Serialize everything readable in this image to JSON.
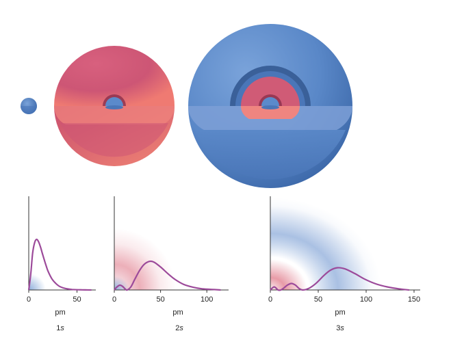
{
  "colors": {
    "blue": "#5b8acb",
    "pink": "#d05b76",
    "curve": "#9c4a9a",
    "axis": "#333333"
  },
  "unit_label": "pm",
  "chart_data": [
    {
      "type": "line",
      "orbital": {
        "number": "1",
        "letter": "s"
      },
      "xlabel": "pm",
      "xlim": [
        0,
        70
      ],
      "x_ticks": [
        0,
        50
      ],
      "nodes": 0,
      "curve": [
        [
          0,
          0
        ],
        [
          2,
          0.3
        ],
        [
          4,
          0.72
        ],
        [
          6,
          0.93
        ],
        [
          8,
          1.0
        ],
        [
          10,
          0.96
        ],
        [
          12,
          0.86
        ],
        [
          14,
          0.73
        ],
        [
          16,
          0.6
        ],
        [
          18,
          0.48
        ],
        [
          20,
          0.37
        ],
        [
          24,
          0.22
        ],
        [
          28,
          0.13
        ],
        [
          32,
          0.07
        ],
        [
          38,
          0.03
        ],
        [
          45,
          0.01
        ],
        [
          55,
          0.003
        ],
        [
          65,
          0
        ]
      ]
    },
    {
      "type": "line",
      "orbital": {
        "number": "2",
        "letter": "s"
      },
      "xlabel": "pm",
      "xlim": [
        0,
        120
      ],
      "x_ticks": [
        0,
        50,
        100
      ],
      "nodes": 1,
      "curve": [
        [
          0,
          0
        ],
        [
          3,
          0.08
        ],
        [
          6,
          0.12
        ],
        [
          9,
          0.09
        ],
        [
          12,
          0.02
        ],
        [
          14,
          0
        ],
        [
          18,
          0.08
        ],
        [
          22,
          0.26
        ],
        [
          27,
          0.48
        ],
        [
          32,
          0.64
        ],
        [
          38,
          0.72
        ],
        [
          43,
          0.7
        ],
        [
          50,
          0.58
        ],
        [
          58,
          0.41
        ],
        [
          66,
          0.26
        ],
        [
          75,
          0.14
        ],
        [
          85,
          0.07
        ],
        [
          95,
          0.03
        ],
        [
          108,
          0.01
        ],
        [
          115,
          0
        ]
      ]
    },
    {
      "type": "line",
      "orbital": {
        "number": "3",
        "letter": "s"
      },
      "xlabel": "pm",
      "xlim": [
        0,
        150
      ],
      "x_ticks": [
        0,
        50,
        100,
        150
      ],
      "nodes": 2,
      "curve": [
        [
          0,
          0
        ],
        [
          2,
          0.05
        ],
        [
          4,
          0.08
        ],
        [
          6,
          0.05
        ],
        [
          8,
          0
        ],
        [
          11,
          0
        ],
        [
          14,
          0.05
        ],
        [
          18,
          0.13
        ],
        [
          22,
          0.17
        ],
        [
          26,
          0.13
        ],
        [
          30,
          0.04
        ],
        [
          34,
          0
        ],
        [
          40,
          0.04
        ],
        [
          48,
          0.18
        ],
        [
          56,
          0.38
        ],
        [
          63,
          0.52
        ],
        [
          70,
          0.58
        ],
        [
          78,
          0.55
        ],
        [
          88,
          0.43
        ],
        [
          98,
          0.29
        ],
        [
          110,
          0.16
        ],
        [
          122,
          0.08
        ],
        [
          134,
          0.03
        ],
        [
          145,
          0
        ]
      ]
    }
  ]
}
